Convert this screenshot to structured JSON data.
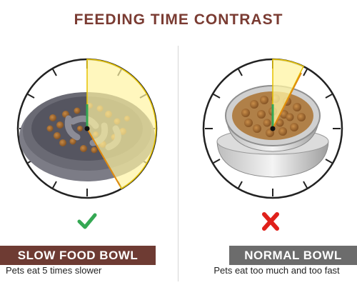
{
  "header": {
    "title": "FEEDING TIME CONTRAST"
  },
  "left": {
    "banner_label": "SLOW FOOD BOWL",
    "caption": "Pets eat 5 times slower",
    "status_icon": "check-icon",
    "accent": "#34a853"
  },
  "right": {
    "banner_label": "NORMAL BOWL",
    "caption": "Pets eat too much and too fast",
    "status_icon": "cross-icon",
    "accent": "#e0201a"
  }
}
